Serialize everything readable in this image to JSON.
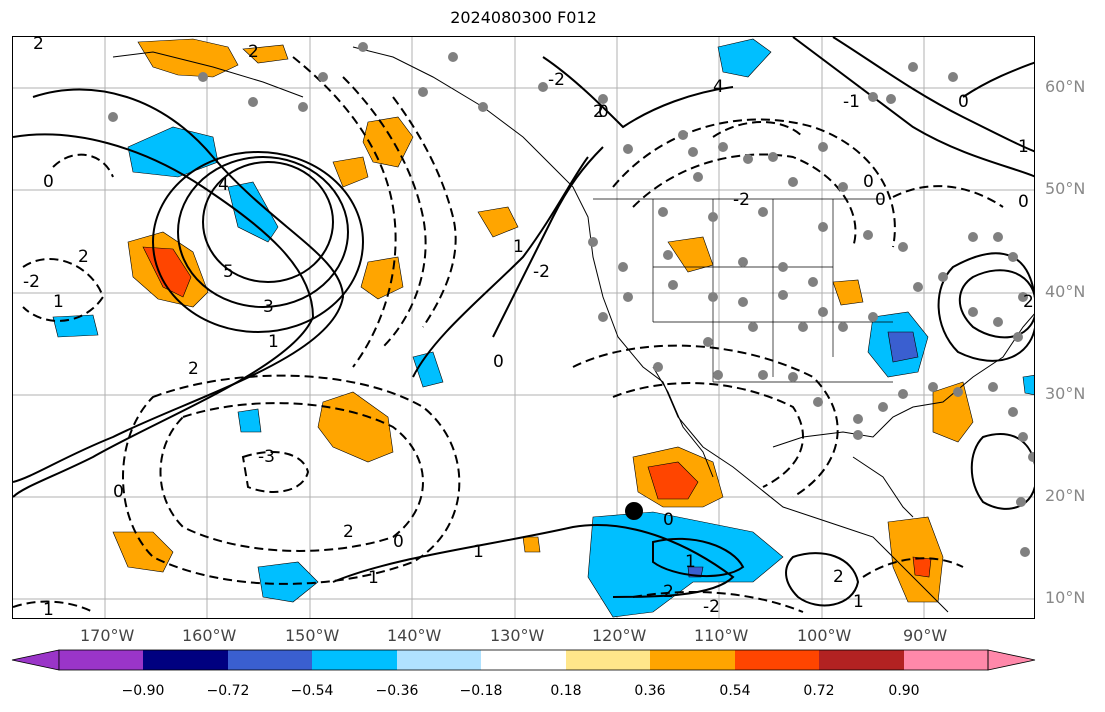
{
  "title": "2024080300 F012",
  "lon_labels": [
    "170°W",
    "160°W",
    "150°W",
    "140°W",
    "130°W",
    "120°W",
    "110°W",
    "100°W",
    "90°W"
  ],
  "lat_labels": [
    "60°N",
    "50°N",
    "40°N",
    "30°N",
    "20°N",
    "10°N"
  ],
  "contour_labels": [
    "2",
    "2",
    "4",
    "2",
    "0",
    "4",
    "5",
    "3",
    "1",
    "2",
    "1",
    "2",
    "-2",
    "1",
    "0",
    "-3",
    "2",
    "0",
    "1",
    "-2",
    "1",
    "0",
    "1",
    "2",
    "1",
    "2",
    "-2",
    "1",
    "0",
    "0",
    "-2",
    "-1",
    "0",
    "2",
    "0",
    "0",
    "-2",
    "1",
    "0"
  ],
  "colorbar": {
    "ticks": [
      "−0.90",
      "−0.72",
      "−0.54",
      "−0.36",
      "−0.18",
      "0.18",
      "0.36",
      "0.54",
      "0.72",
      "0.90"
    ],
    "colors": [
      "#9a35c8",
      "#000080",
      "#3a5fd0",
      "#00bfff",
      "#b0e2ff",
      "#ffffff",
      "#ffe68a",
      "#ffa500",
      "#ff4500",
      "#b22222",
      "#ff88aa"
    ]
  }
}
